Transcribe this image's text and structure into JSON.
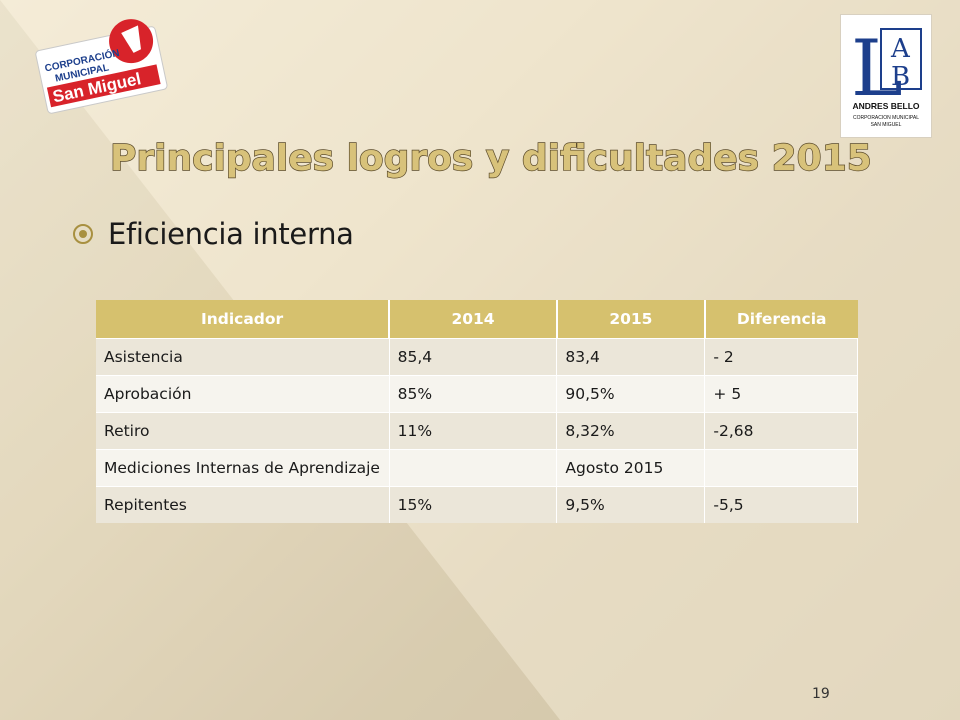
{
  "slide": {
    "title": "Principales logros y dificultades 2015",
    "bullet": "Eficiencia interna",
    "page_number": "19"
  },
  "logos": {
    "left": {
      "line1": "CORPORACIÓN",
      "line2": "MUNICIPAL",
      "line3": "San Miguel",
      "icon": "red-circle-flag-logo"
    },
    "right": {
      "letters": [
        "L",
        "A",
        "B"
      ],
      "name": "ANDRES BELLO",
      "sub1": "CORPORACION MUNICIPAL",
      "sub2": "SAN MIGUEL"
    }
  },
  "table": {
    "headers": [
      "Indicador",
      "2014",
      "2015",
      "Diferencia"
    ],
    "rows": [
      [
        "Asistencia",
        "85,4",
        "83,4",
        "- 2"
      ],
      [
        "Aprobación",
        "85%",
        "90,5%",
        "+ 5"
      ],
      [
        "Retiro",
        "11%",
        "8,32%",
        "-2,68"
      ],
      [
        "Mediciones Internas de Aprendizaje",
        "",
        "Agosto 2015",
        ""
      ],
      [
        "Repitentes",
        "15%",
        "9,5%",
        "-5,5"
      ]
    ]
  },
  "colors": {
    "header_bg": "#d6c16e",
    "title_fill": "#d8c27a",
    "title_stroke": "#5a4a2a",
    "logo_red": "#d8232a",
    "logo_blue": "#1d3f8c"
  }
}
